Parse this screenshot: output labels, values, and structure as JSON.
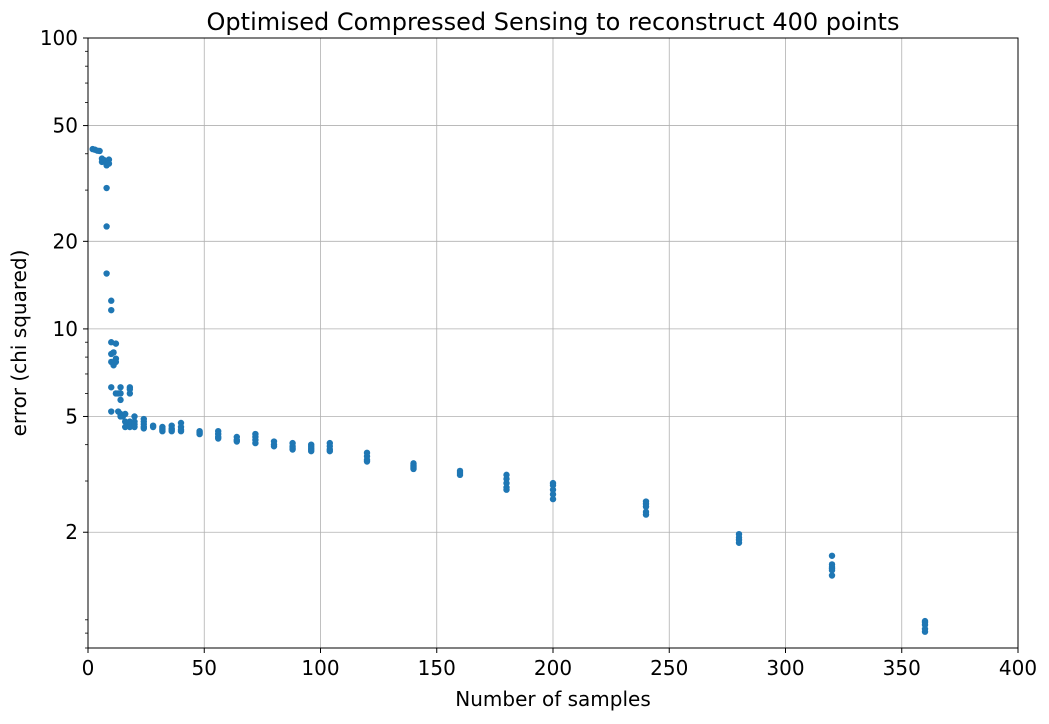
{
  "chart_data": {
    "type": "scatter",
    "title": "Optimised Compressed Sensing to reconstruct 400 points",
    "xlabel": "Number of samples",
    "ylabel": "error (chi squared)",
    "xlim": [
      0,
      400
    ],
    "ylim": [
      0.8,
      100
    ],
    "yscale": "log",
    "grid": true,
    "legend": "none",
    "xticks": [
      0,
      50,
      100,
      150,
      200,
      250,
      300,
      350,
      400
    ],
    "xtick_labels": [
      "0",
      "50",
      "100",
      "150",
      "200",
      "250",
      "300",
      "350",
      "400"
    ],
    "yticks": [
      2,
      5,
      10,
      20,
      50,
      100
    ],
    "ytick_labels": [
      "2",
      "5",
      "10",
      "20",
      "50",
      "100"
    ],
    "marker_color": "#1f77b4",
    "series": [
      {
        "points": [
          [
            2,
            41.5
          ],
          [
            3,
            41.3
          ],
          [
            4,
            41.0
          ],
          [
            5,
            40.9
          ],
          [
            6,
            38.5
          ],
          [
            6,
            37.5
          ],
          [
            7,
            38.0
          ],
          [
            8,
            37.0
          ],
          [
            8,
            36.5
          ],
          [
            9,
            38.2
          ],
          [
            9,
            37.0
          ],
          [
            8,
            30.5
          ],
          [
            8,
            22.5
          ],
          [
            8,
            15.5
          ],
          [
            10,
            12.5
          ],
          [
            10,
            11.6
          ],
          [
            10,
            9.0
          ],
          [
            10,
            8.2
          ],
          [
            10,
            7.7
          ],
          [
            11,
            8.3
          ],
          [
            11,
            7.5
          ],
          [
            12,
            8.9
          ],
          [
            12,
            7.9
          ],
          [
            12,
            7.7
          ],
          [
            10,
            6.3
          ],
          [
            12,
            6.0
          ],
          [
            13,
            6.0
          ],
          [
            14,
            6.3
          ],
          [
            14,
            6.0
          ],
          [
            14,
            5.7
          ],
          [
            10,
            5.2
          ],
          [
            13,
            5.2
          ],
          [
            14,
            5.0
          ],
          [
            14,
            5.1
          ],
          [
            15,
            5.0
          ],
          [
            16,
            5.1
          ],
          [
            16,
            4.8
          ],
          [
            16,
            4.6
          ],
          [
            18,
            6.3
          ],
          [
            18,
            6.2
          ],
          [
            18,
            6.0
          ],
          [
            18,
            4.8
          ],
          [
            18,
            4.7
          ],
          [
            18,
            4.6
          ],
          [
            20,
            5.0
          ],
          [
            20,
            4.8
          ],
          [
            20,
            4.7
          ],
          [
            20,
            4.6
          ],
          [
            24,
            4.9
          ],
          [
            24,
            4.8
          ],
          [
            24,
            4.7
          ],
          [
            24,
            4.6
          ],
          [
            24,
            4.55
          ],
          [
            28,
            4.65
          ],
          [
            28,
            4.6
          ],
          [
            32,
            4.6
          ],
          [
            32,
            4.55
          ],
          [
            32,
            4.5
          ],
          [
            32,
            4.45
          ],
          [
            36,
            4.65
          ],
          [
            36,
            4.55
          ],
          [
            36,
            4.5
          ],
          [
            36,
            4.45
          ],
          [
            40,
            4.75
          ],
          [
            40,
            4.6
          ],
          [
            40,
            4.5
          ],
          [
            40,
            4.45
          ],
          [
            48,
            4.45
          ],
          [
            48,
            4.4
          ],
          [
            48,
            4.35
          ],
          [
            56,
            4.45
          ],
          [
            56,
            4.35
          ],
          [
            56,
            4.25
          ],
          [
            56,
            4.2
          ],
          [
            64,
            4.25
          ],
          [
            64,
            4.15
          ],
          [
            64,
            4.1
          ],
          [
            72,
            4.35
          ],
          [
            72,
            4.25
          ],
          [
            72,
            4.15
          ],
          [
            72,
            4.05
          ],
          [
            80,
            4.1
          ],
          [
            80,
            4.0
          ],
          [
            80,
            3.95
          ],
          [
            88,
            4.05
          ],
          [
            88,
            3.95
          ],
          [
            88,
            3.9
          ],
          [
            88,
            3.85
          ],
          [
            96,
            4.0
          ],
          [
            96,
            3.95
          ],
          [
            96,
            3.9
          ],
          [
            96,
            3.85
          ],
          [
            96,
            3.8
          ],
          [
            104,
            4.05
          ],
          [
            104,
            3.95
          ],
          [
            104,
            3.85
          ],
          [
            104,
            3.8
          ],
          [
            120,
            3.75
          ],
          [
            120,
            3.65
          ],
          [
            120,
            3.55
          ],
          [
            120,
            3.5
          ],
          [
            140,
            3.45
          ],
          [
            140,
            3.4
          ],
          [
            140,
            3.35
          ],
          [
            140,
            3.3
          ],
          [
            160,
            3.25
          ],
          [
            160,
            3.2
          ],
          [
            160,
            3.15
          ],
          [
            180,
            3.15
          ],
          [
            180,
            3.05
          ],
          [
            180,
            2.95
          ],
          [
            180,
            2.85
          ],
          [
            180,
            2.8
          ],
          [
            200,
            2.95
          ],
          [
            200,
            2.9
          ],
          [
            200,
            2.8
          ],
          [
            200,
            2.7
          ],
          [
            200,
            2.6
          ],
          [
            240,
            2.55
          ],
          [
            240,
            2.5
          ],
          [
            240,
            2.45
          ],
          [
            240,
            2.35
          ],
          [
            240,
            2.3
          ],
          [
            280,
            1.97
          ],
          [
            280,
            1.92
          ],
          [
            280,
            1.88
          ],
          [
            280,
            1.84
          ],
          [
            320,
            1.66
          ],
          [
            320,
            1.55
          ],
          [
            320,
            1.52
          ],
          [
            320,
            1.5
          ],
          [
            320,
            1.48
          ],
          [
            320,
            1.42
          ],
          [
            360,
            0.99
          ],
          [
            360,
            0.98
          ],
          [
            360,
            0.96
          ],
          [
            360,
            0.93
          ],
          [
            360,
            0.91
          ]
        ]
      }
    ]
  }
}
